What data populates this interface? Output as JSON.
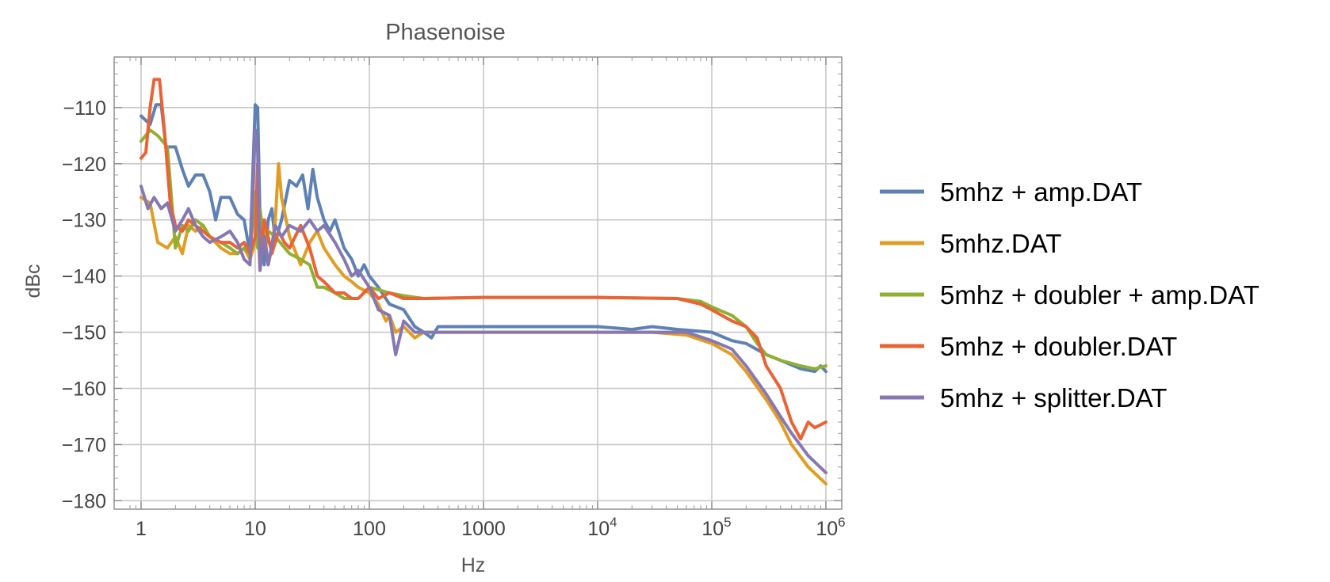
{
  "chart_data": {
    "type": "line",
    "title": "Phasenoise",
    "xlabel": "Hz",
    "ylabel": "dBc",
    "xscale": "log",
    "xlim": [
      0.78,
      1300000.0
    ],
    "ylim": [
      -181.5,
      -101
    ],
    "grid": true,
    "legend": "right",
    "x_ticks": [
      {
        "value": 1,
        "label": "1"
      },
      {
        "value": 10,
        "label": "10"
      },
      {
        "value": 100,
        "label": "100"
      },
      {
        "value": 1000,
        "label": "1000"
      },
      {
        "value": 10000,
        "base": "10",
        "exp": "4"
      },
      {
        "value": 100000,
        "base": "10",
        "exp": "5"
      },
      {
        "value": 1000000,
        "base": "10",
        "exp": "6"
      }
    ],
    "y_ticks": [
      -110,
      -120,
      -130,
      -140,
      -150,
      -160,
      -170,
      -180
    ],
    "series": [
      {
        "name": "5mhz + amp.DAT",
        "color": "#5e81b5",
        "points": [
          [
            1,
            -111.5
          ],
          [
            1.2,
            -113
          ],
          [
            1.35,
            -109.5
          ],
          [
            1.5,
            -109.5
          ],
          [
            1.65,
            -117
          ],
          [
            2,
            -117
          ],
          [
            2.3,
            -121
          ],
          [
            2.6,
            -124
          ],
          [
            3,
            -122
          ],
          [
            3.5,
            -122
          ],
          [
            4,
            -125
          ],
          [
            4.5,
            -130
          ],
          [
            5,
            -126
          ],
          [
            6,
            -126
          ],
          [
            7,
            -129
          ],
          [
            8,
            -130
          ],
          [
            9,
            -136
          ],
          [
            10,
            -109.5
          ],
          [
            10.5,
            -110
          ],
          [
            11,
            -130
          ],
          [
            12,
            -138
          ],
          [
            13,
            -130
          ],
          [
            14,
            -128
          ],
          [
            15,
            -134
          ],
          [
            17,
            -130
          ],
          [
            20,
            -123
          ],
          [
            23,
            -124
          ],
          [
            26,
            -122
          ],
          [
            29,
            -128
          ],
          [
            32,
            -121
          ],
          [
            35,
            -126
          ],
          [
            40,
            -130
          ],
          [
            45,
            -132
          ],
          [
            50,
            -130
          ],
          [
            60,
            -135
          ],
          [
            70,
            -137
          ],
          [
            80,
            -140
          ],
          [
            90,
            -138
          ],
          [
            100,
            -140
          ],
          [
            120,
            -142
          ],
          [
            150,
            -145
          ],
          [
            200,
            -146
          ],
          [
            250,
            -149
          ],
          [
            300,
            -150
          ],
          [
            350,
            -151
          ],
          [
            400,
            -149
          ],
          [
            1000,
            -149
          ],
          [
            3000,
            -149
          ],
          [
            10000,
            -149
          ],
          [
            20000,
            -149.5
          ],
          [
            30000,
            -149
          ],
          [
            50000,
            -149.5
          ],
          [
            100000,
            -150
          ],
          [
            150000,
            -151.5
          ],
          [
            200000,
            -152
          ],
          [
            300000,
            -154
          ],
          [
            400000,
            -155
          ],
          [
            600000,
            -156.5
          ],
          [
            800000,
            -157
          ],
          [
            900000,
            -156
          ],
          [
            1000000,
            -157
          ]
        ]
      },
      {
        "name": "5mhz.DAT",
        "color": "#e19c24",
        "points": [
          [
            1,
            -126
          ],
          [
            1.2,
            -127
          ],
          [
            1.4,
            -134
          ],
          [
            1.7,
            -135
          ],
          [
            2,
            -133
          ],
          [
            2.3,
            -136
          ],
          [
            2.6,
            -131
          ],
          [
            3,
            -132
          ],
          [
            3.5,
            -131
          ],
          [
            4,
            -133
          ],
          [
            5,
            -135
          ],
          [
            6,
            -136
          ],
          [
            7,
            -136
          ],
          [
            8,
            -135
          ],
          [
            9,
            -137
          ],
          [
            10,
            -134
          ],
          [
            10.5,
            -130
          ],
          [
            11,
            -139
          ],
          [
            12,
            -132
          ],
          [
            13,
            -138
          ],
          [
            14,
            -135
          ],
          [
            15,
            -130
          ],
          [
            16,
            -120
          ],
          [
            17,
            -126
          ],
          [
            20,
            -133
          ],
          [
            25,
            -138
          ],
          [
            30,
            -134
          ],
          [
            35,
            -132
          ],
          [
            40,
            -135
          ],
          [
            50,
            -138
          ],
          [
            60,
            -140
          ],
          [
            70,
            -141
          ],
          [
            80,
            -142
          ],
          [
            100,
            -143
          ],
          [
            120,
            -145
          ],
          [
            140,
            -148
          ],
          [
            150,
            -147
          ],
          [
            170,
            -150
          ],
          [
            200,
            -149
          ],
          [
            250,
            -151
          ],
          [
            300,
            -150
          ],
          [
            400,
            -150
          ],
          [
            1000,
            -150
          ],
          [
            10000,
            -150
          ],
          [
            30000,
            -150
          ],
          [
            60000,
            -150.5
          ],
          [
            100000,
            -152
          ],
          [
            150000,
            -154
          ],
          [
            200000,
            -157
          ],
          [
            300000,
            -162
          ],
          [
            400000,
            -166
          ],
          [
            500000,
            -170
          ],
          [
            700000,
            -174
          ],
          [
            1000000,
            -177
          ]
        ]
      },
      {
        "name": "5mhz + doubler + amp.DAT",
        "color": "#8fb032",
        "points": [
          [
            1,
            -116
          ],
          [
            1.2,
            -114
          ],
          [
            1.4,
            -115
          ],
          [
            1.7,
            -117
          ],
          [
            2,
            -135
          ],
          [
            2.3,
            -131
          ],
          [
            2.6,
            -132
          ],
          [
            3,
            -130
          ],
          [
            3.5,
            -131
          ],
          [
            4,
            -133
          ],
          [
            5,
            -134
          ],
          [
            6,
            -135
          ],
          [
            7,
            -136
          ],
          [
            8,
            -135
          ],
          [
            9,
            -136
          ],
          [
            10,
            -125
          ],
          [
            10.5,
            -135
          ],
          [
            11,
            -128
          ],
          [
            12,
            -134
          ],
          [
            13,
            -132
          ],
          [
            15,
            -133
          ],
          [
            20,
            -136
          ],
          [
            25,
            -137
          ],
          [
            30,
            -138
          ],
          [
            35,
            -142
          ],
          [
            40,
            -142
          ],
          [
            50,
            -143
          ],
          [
            60,
            -144
          ],
          [
            70,
            -144
          ],
          [
            80,
            -144
          ],
          [
            100,
            -142
          ],
          [
            150,
            -143
          ],
          [
            200,
            -143.5
          ],
          [
            300,
            -144
          ],
          [
            1000,
            -143.8
          ],
          [
            10000,
            -143.8
          ],
          [
            50000,
            -144
          ],
          [
            80000,
            -144.5
          ],
          [
            100000,
            -145.5
          ],
          [
            150000,
            -147
          ],
          [
            200000,
            -149
          ],
          [
            250000,
            -152
          ],
          [
            300000,
            -154
          ],
          [
            400000,
            -155
          ],
          [
            600000,
            -156
          ],
          [
            800000,
            -156.5
          ],
          [
            1000000,
            -156
          ]
        ]
      },
      {
        "name": "5mhz + doubler.DAT",
        "color": "#eb6235",
        "points": [
          [
            1,
            -119
          ],
          [
            1.1,
            -118
          ],
          [
            1.2,
            -110
          ],
          [
            1.3,
            -105
          ],
          [
            1.45,
            -105
          ],
          [
            1.6,
            -114
          ],
          [
            1.8,
            -127
          ],
          [
            2,
            -131
          ],
          [
            2.3,
            -132
          ],
          [
            2.6,
            -130
          ],
          [
            3,
            -131
          ],
          [
            3.5,
            -132
          ],
          [
            4,
            -133
          ],
          [
            5,
            -134
          ],
          [
            6,
            -134
          ],
          [
            7,
            -135
          ],
          [
            8,
            -134
          ],
          [
            9,
            -136
          ],
          [
            10,
            -133
          ],
          [
            10.5,
            -120
          ],
          [
            11,
            -136
          ],
          [
            12,
            -130
          ],
          [
            14,
            -136
          ],
          [
            16,
            -132
          ],
          [
            18,
            -134
          ],
          [
            20,
            -135
          ],
          [
            25,
            -131
          ],
          [
            30,
            -135
          ],
          [
            35,
            -140
          ],
          [
            40,
            -141
          ],
          [
            50,
            -143
          ],
          [
            60,
            -143
          ],
          [
            70,
            -144
          ],
          [
            80,
            -144
          ],
          [
            100,
            -142
          ],
          [
            120,
            -144
          ],
          [
            150,
            -143
          ],
          [
            200,
            -144
          ],
          [
            300,
            -144
          ],
          [
            1000,
            -143.8
          ],
          [
            10000,
            -143.8
          ],
          [
            50000,
            -144
          ],
          [
            80000,
            -145
          ],
          [
            100000,
            -146
          ],
          [
            150000,
            -148
          ],
          [
            200000,
            -149
          ],
          [
            250000,
            -151
          ],
          [
            300000,
            -156
          ],
          [
            400000,
            -160
          ],
          [
            500000,
            -166
          ],
          [
            600000,
            -169
          ],
          [
            700000,
            -166
          ],
          [
            800000,
            -167
          ],
          [
            1000000,
            -166
          ]
        ]
      },
      {
        "name": "5mhz + splitter.DAT",
        "color": "#8778b3",
        "points": [
          [
            1,
            -124
          ],
          [
            1.15,
            -128
          ],
          [
            1.3,
            -126
          ],
          [
            1.5,
            -128
          ],
          [
            1.7,
            -127
          ],
          [
            2,
            -132
          ],
          [
            2.3,
            -130
          ],
          [
            2.6,
            -128
          ],
          [
            3,
            -131
          ],
          [
            3.5,
            -133
          ],
          [
            4,
            -134
          ],
          [
            5,
            -133
          ],
          [
            6,
            -132
          ],
          [
            7,
            -134
          ],
          [
            8,
            -137
          ],
          [
            9,
            -138
          ],
          [
            10,
            -114
          ],
          [
            10.5,
            -118
          ],
          [
            11,
            -139
          ],
          [
            12,
            -133
          ],
          [
            13,
            -138
          ],
          [
            15,
            -131
          ],
          [
            17,
            -133
          ],
          [
            20,
            -131
          ],
          [
            25,
            -132
          ],
          [
            30,
            -130
          ],
          [
            35,
            -132
          ],
          [
            40,
            -131
          ],
          [
            50,
            -134
          ],
          [
            60,
            -137
          ],
          [
            70,
            -140
          ],
          [
            80,
            -139
          ],
          [
            100,
            -142
          ],
          [
            120,
            -146
          ],
          [
            150,
            -147
          ],
          [
            170,
            -154
          ],
          [
            200,
            -148
          ],
          [
            250,
            -150
          ],
          [
            300,
            -150
          ],
          [
            400,
            -150
          ],
          [
            1000,
            -150
          ],
          [
            10000,
            -150
          ],
          [
            30000,
            -150
          ],
          [
            60000,
            -150
          ],
          [
            100000,
            -151.5
          ],
          [
            150000,
            -153
          ],
          [
            200000,
            -156
          ],
          [
            300000,
            -161
          ],
          [
            400000,
            -165
          ],
          [
            500000,
            -168
          ],
          [
            700000,
            -172
          ],
          [
            1000000,
            -175
          ]
        ]
      }
    ]
  }
}
